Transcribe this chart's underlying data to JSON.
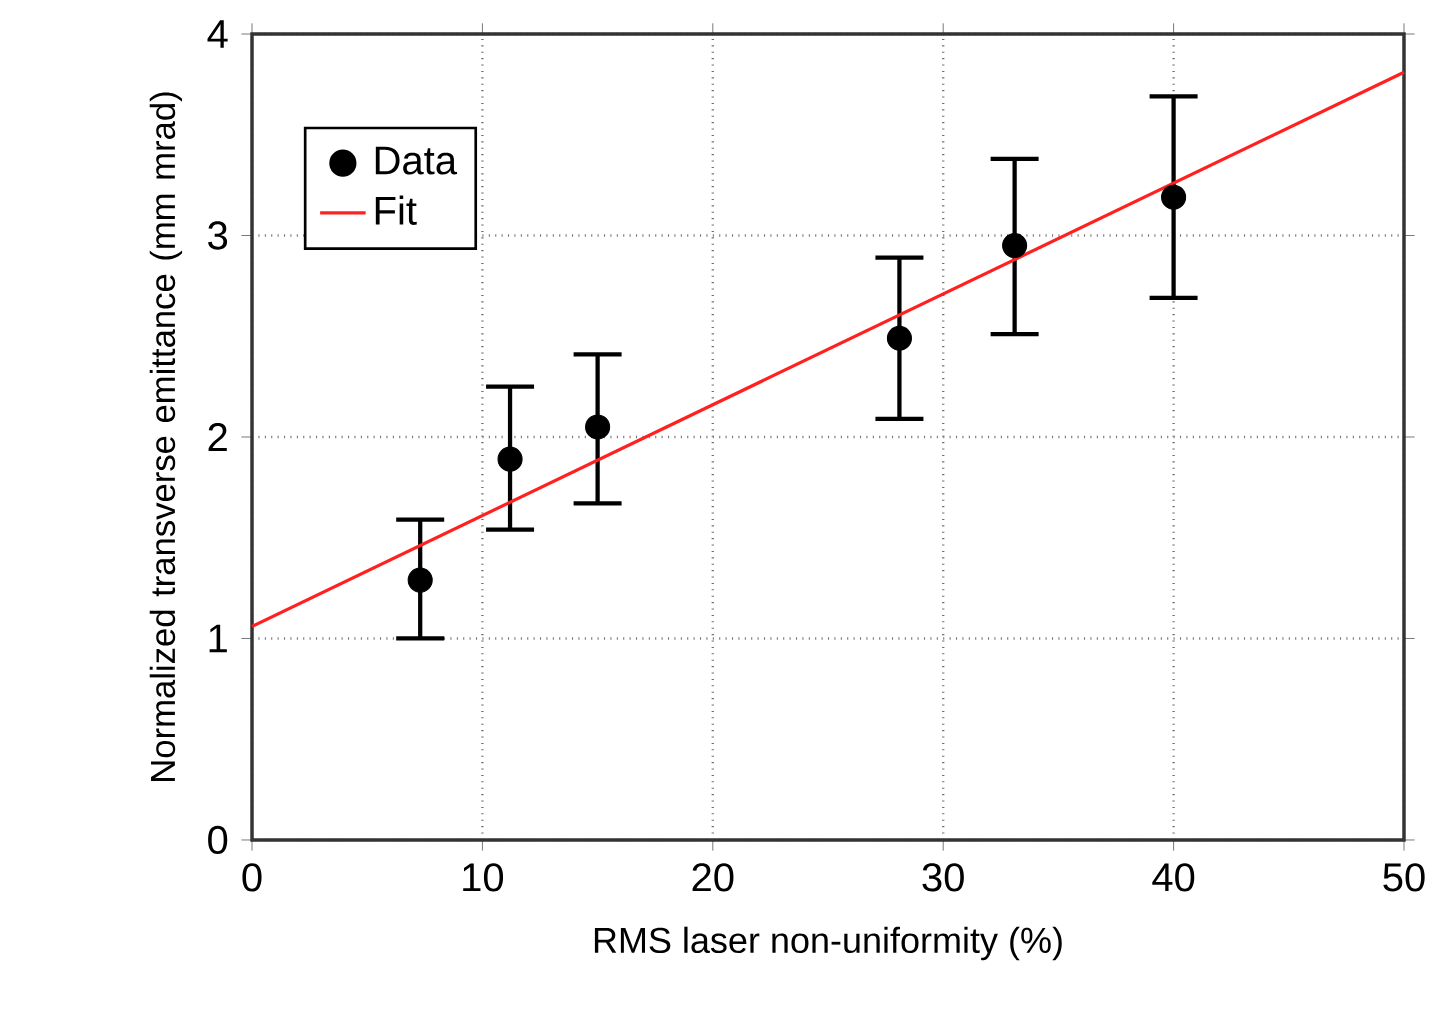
{
  "chart_data": {
    "type": "scatter",
    "xlabel": "RMS laser non-uniformity (%)",
    "ylabel": "Normalized transverse emittance (mm mrad)",
    "xlim": [
      0,
      50
    ],
    "ylim": [
      0,
      4
    ],
    "xticks": [
      0,
      10,
      20,
      30,
      40,
      50
    ],
    "yticks": [
      0,
      1,
      2,
      3,
      4
    ],
    "grid": true,
    "legend": "top left",
    "series": [
      {
        "name": "Data",
        "color": "#000000",
        "marker": "circle",
        "x": [
          7.3,
          11.2,
          15.0,
          28.1,
          33.1,
          40.0
        ],
        "values": [
          1.29,
          1.89,
          2.05,
          2.49,
          2.95,
          3.19
        ],
        "errors": [
          [
            1.0,
            1.59
          ],
          [
            1.54,
            2.25
          ],
          [
            1.67,
            2.41
          ],
          [
            2.09,
            2.89
          ],
          [
            2.51,
            3.38
          ],
          [
            2.69,
            3.69
          ]
        ]
      },
      {
        "name": "Fit",
        "type": "line",
        "color": "#ff2020",
        "marker": "none",
        "line_style": "solid",
        "x": [
          0,
          50
        ],
        "values": [
          1.06,
          3.81
        ]
      }
    ]
  }
}
